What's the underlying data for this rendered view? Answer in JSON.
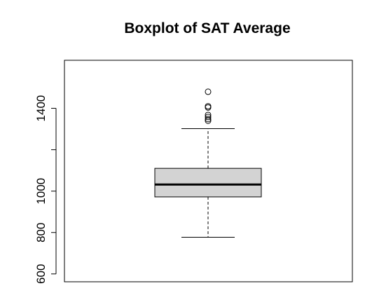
{
  "chart_data": {
    "type": "boxplot",
    "title": "Boxplot of SAT Average",
    "xlabel": "",
    "ylabel": "",
    "ylim": [
      562,
      1632
    ],
    "yticks": [
      600,
      800,
      1000,
      1200,
      1400
    ],
    "ytick_labels": [
      "600",
      "800",
      "1000",
      "",
      "1400"
    ],
    "grid": false,
    "series": [
      {
        "whisker_low": 777,
        "q1": 972,
        "median": 1032,
        "q3": 1110,
        "whisker_high": 1302,
        "outliers": [
          1340,
          1348,
          1358,
          1368,
          1404,
          1410,
          1480
        ]
      }
    ],
    "colors": {
      "box_fill": "#d3d3d3",
      "stroke": "#000000"
    }
  }
}
